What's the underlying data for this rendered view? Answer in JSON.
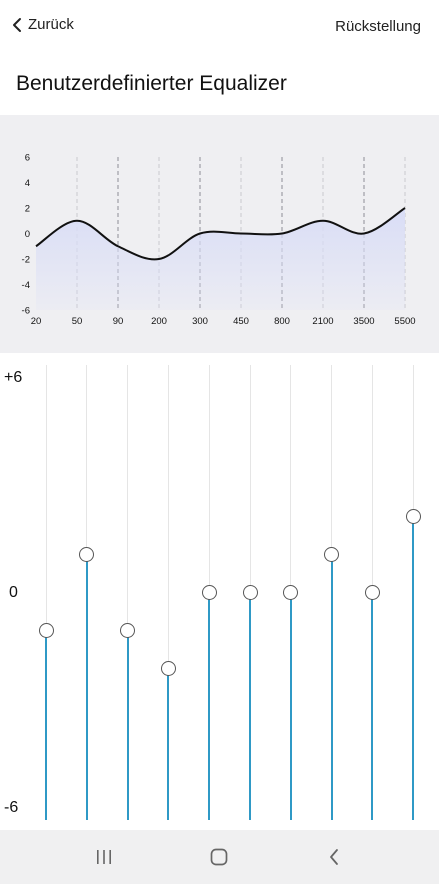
{
  "header": {
    "back_label": "Zurück",
    "reset_label": "Rückstellung",
    "title": "Benutzerdefinierter Equalizer"
  },
  "chart_data": {
    "type": "line",
    "x": [
      "20",
      "50",
      "90",
      "200",
      "300",
      "450",
      "800",
      "2100",
      "3500",
      "5500"
    ],
    "values": [
      -1,
      1,
      -1,
      -2,
      0,
      0,
      0,
      1,
      0,
      2
    ],
    "yticks": [
      6,
      4,
      2,
      0,
      -2,
      -4,
      -6
    ],
    "ylim": [
      -6,
      6
    ],
    "grid": "vertical dashed",
    "fill_color": "#d9ddf6",
    "line_color": "#111111"
  },
  "sliders": {
    "scale_top": "+6",
    "scale_mid": "0",
    "scale_bottom": "-6",
    "range": [
      -6,
      6
    ],
    "bands": [
      {
        "name": "20",
        "value": -1
      },
      {
        "name": "50",
        "value": 1
      },
      {
        "name": "90",
        "value": -1
      },
      {
        "name": "200",
        "value": -2
      },
      {
        "name": "300",
        "value": 0
      },
      {
        "name": "450",
        "value": 0
      },
      {
        "name": "800",
        "value": 0
      },
      {
        "name": "2100",
        "value": 1
      },
      {
        "name": "3500",
        "value": 0
      },
      {
        "name": "5500",
        "value": 2
      }
    ],
    "accent_color": "#2f99c6"
  },
  "navbar": {
    "recent_icon": "recent-apps-icon",
    "home_icon": "home-icon",
    "back_icon": "back-icon"
  }
}
